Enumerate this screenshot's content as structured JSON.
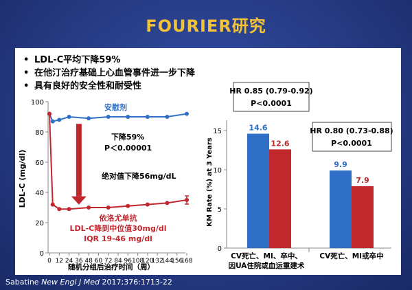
{
  "slide": {
    "title": "FOURIER研究",
    "bullets": [
      "LDL-C平均下降59%",
      "在他汀治疗基础上心血管事件进一步下降",
      "具有良好的安全性和耐受性"
    ],
    "citation_author": "Sabatine ",
    "citation_journal": "New Engl J Med",
    "citation_rest": " 2017;376:1713-22"
  },
  "colors": {
    "placebo": "#2f6fc6",
    "evolocumab": "#c0282e",
    "arrow": "#c0282e",
    "title": "#f2c338"
  },
  "chart_data": [
    {
      "type": "line",
      "ylabel": "LDL-C (mg/dl)",
      "xlabel": "随机分组后治疗时间（周）",
      "x": [
        0,
        12,
        24,
        36,
        48,
        60,
        72,
        84,
        96,
        108,
        120,
        132,
        144,
        156,
        168
      ],
      "xticks": [
        0,
        12,
        24,
        36,
        48,
        60,
        72,
        84,
        96,
        108,
        120,
        132,
        144,
        156,
        168
      ],
      "xtick_labels": [
        "0",
        "12",
        "24",
        "36",
        "48",
        "60",
        "72",
        "84",
        "96",
        "108",
        "120",
        "132",
        "144",
        "156",
        "168"
      ],
      "yticks": [
        0,
        20,
        40,
        60,
        80,
        100
      ],
      "ylim": [
        0,
        100
      ],
      "series": [
        {
          "name": "安慰剂",
          "x": [
            0,
            4,
            12,
            24,
            48,
            72,
            96,
            120,
            144,
            168
          ],
          "values": [
            92,
            87,
            88,
            90,
            89,
            90,
            90,
            90,
            90,
            92
          ]
        },
        {
          "name": "依洛尤单抗",
          "x": [
            0,
            4,
            12,
            24,
            48,
            72,
            96,
            120,
            144,
            168
          ],
          "values": [
            92,
            32,
            29,
            29,
            30,
            30,
            31,
            32,
            33,
            35
          ]
        }
      ],
      "annotations": {
        "drop_pct": "下降59%",
        "p_value": "P＜0.00001",
        "abs_drop": "绝对值下降56mg/dL",
        "drug_name": "依洛尤单抗",
        "median_text": "LDL-C降到中位值30mg/dl",
        "iqr_text": "IQR 19-46 mg/dl"
      }
    },
    {
      "type": "bar",
      "ylabel": "KM Rate (%) at 3 Years",
      "ylim": [
        0,
        15
      ],
      "yticks": [
        0,
        5,
        10,
        15
      ],
      "categories": [
        "CV死亡、MI、卒中、因UA住院或血运重建术",
        "CV死亡、MI或卒中"
      ],
      "category_lines": [
        [
          "CV死亡、MI、卒中、",
          "因UA住院或血运重建术"
        ],
        [
          "CV死亡、MI或卒中",
          ""
        ]
      ],
      "series": [
        {
          "name": "安慰剂",
          "values": [
            14.6,
            9.9
          ],
          "labels": [
            "14.6",
            "9.9"
          ]
        },
        {
          "name": "依洛尤单抗",
          "values": [
            12.6,
            7.9
          ],
          "labels": [
            "12.6",
            "7.9"
          ]
        }
      ],
      "hr_boxes": [
        {
          "hr": "HR 0.85 (0.79-0.92)",
          "p": "P<0.0001"
        },
        {
          "hr": "HR 0.80 (0.73-0.88)",
          "p": "P<0.0001"
        }
      ]
    }
  ]
}
